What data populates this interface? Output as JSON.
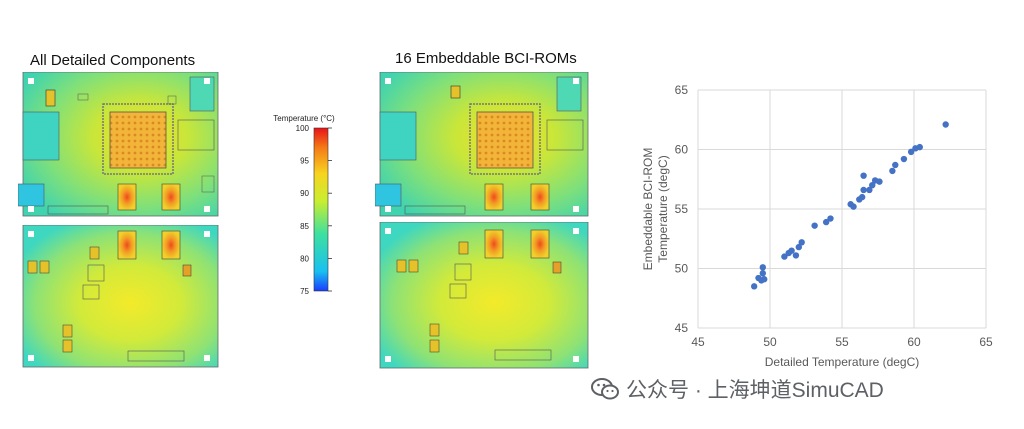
{
  "panels": {
    "left_title": "All Detailed Components",
    "mid_title": "16 Embeddable BCI-ROMs"
  },
  "colorbar": {
    "label": "Temperature (°C)",
    "ticks": [
      "100",
      "95",
      "90",
      "85",
      "80",
      "75"
    ],
    "min": 75,
    "max": 100
  },
  "watermark": {
    "text": "公众号 · 上海坤道SimuCAD"
  },
  "chart_data": {
    "type": "scatter",
    "title": "",
    "xlabel": "Detailed Temperature (degC)",
    "ylabel_lines": [
      "Embeddable BCI-ROM",
      "Temperature (degC)"
    ],
    "xlim": [
      45,
      65
    ],
    "ylim": [
      45,
      65
    ],
    "xticks": [
      "45",
      "50",
      "55",
      "60",
      "65"
    ],
    "yticks": [
      "45",
      "50",
      "55",
      "60",
      "65"
    ],
    "grid": true,
    "point_color": "#4472c4",
    "points": [
      [
        48.9,
        48.5
      ],
      [
        49.2,
        49.2
      ],
      [
        49.4,
        49.0
      ],
      [
        49.5,
        49.6
      ],
      [
        49.5,
        50.1
      ],
      [
        49.6,
        49.1
      ],
      [
        51.0,
        51.0
      ],
      [
        51.3,
        51.3
      ],
      [
        51.5,
        51.5
      ],
      [
        51.8,
        51.1
      ],
      [
        52.0,
        51.8
      ],
      [
        52.2,
        52.2
      ],
      [
        53.1,
        53.6
      ],
      [
        53.9,
        53.9
      ],
      [
        54.2,
        54.2
      ],
      [
        55.6,
        55.4
      ],
      [
        55.8,
        55.2
      ],
      [
        56.2,
        55.8
      ],
      [
        56.4,
        56.0
      ],
      [
        56.5,
        56.6
      ],
      [
        56.5,
        57.8
      ],
      [
        56.9,
        56.6
      ],
      [
        57.1,
        57.0
      ],
      [
        57.3,
        57.4
      ],
      [
        57.6,
        57.3
      ],
      [
        58.5,
        58.2
      ],
      [
        58.7,
        58.7
      ],
      [
        59.3,
        59.2
      ],
      [
        59.8,
        59.8
      ],
      [
        60.1,
        60.1
      ],
      [
        60.4,
        60.2
      ],
      [
        62.2,
        62.1
      ]
    ]
  }
}
